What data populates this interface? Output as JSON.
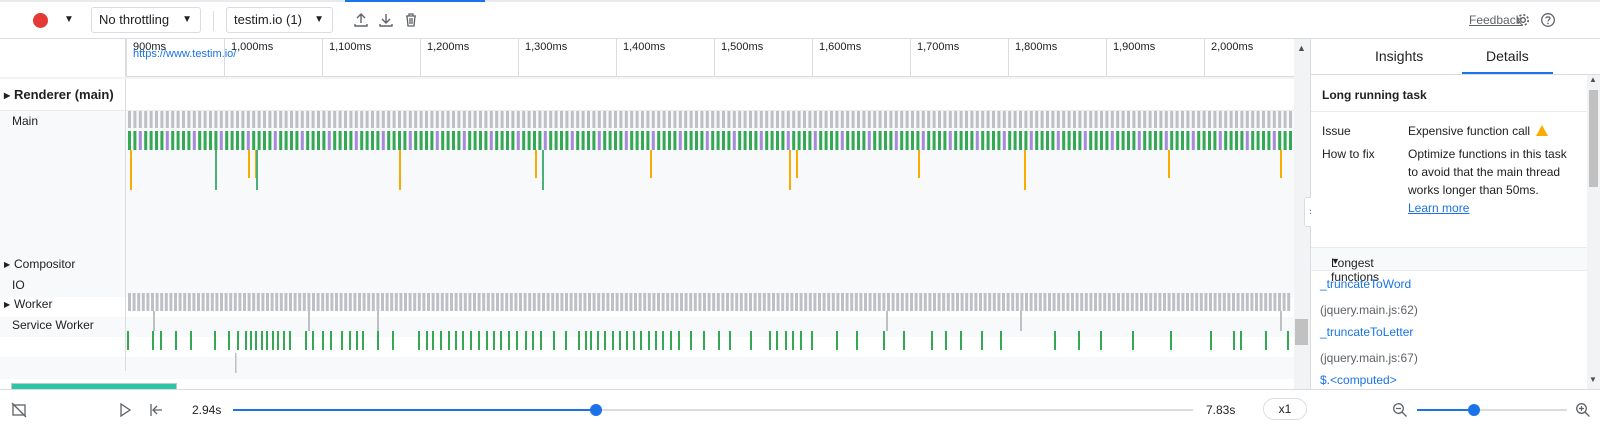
{
  "toolbar": {
    "throttling_value": "No throttling",
    "target_value": "testim.io (1)",
    "feedback_label": "Feedback"
  },
  "ruler": {
    "ticks": [
      "900ms",
      "1,000ms",
      "1,100ms",
      "1,200ms",
      "1,300ms",
      "1,400ms",
      "1,500ms",
      "1,600ms",
      "1,700ms",
      "1,800ms",
      "1,900ms",
      "2,000ms"
    ]
  },
  "tracks": {
    "renderer": "Renderer (main)",
    "renderer_url": "https://www.testim.io/",
    "main": "Main",
    "compositor": "Compositor",
    "io": "IO",
    "worker": "Worker",
    "service_worker": "Service Worker"
  },
  "colors": {
    "task_gray": "#bdc1c6",
    "scripting_green": "#34a853",
    "rendering_purple": "#a78bda",
    "long_task_yellow": "#f9ab00",
    "accent_blue": "#1a73e8"
  },
  "details": {
    "tabs": [
      "Insights",
      "Details"
    ],
    "active_tab": "Details",
    "title": "Long running task",
    "issue_key": "Issue",
    "issue_value": "Expensive function call",
    "fix_key": "How to fix",
    "fix_value": "Optimize functions in this task to avoid that the main thread works longer than 50ms.",
    "learn_more": "Learn more",
    "longest_functions_header": "Longest functions",
    "functions": [
      {
        "name": "_truncateToWord",
        "location": "(jquery.main.js:62)"
      },
      {
        "name": "_truncateToLetter",
        "location": "(jquery.main.js:67)"
      },
      {
        "name": "$.<computed>",
        "location": ""
      }
    ]
  },
  "playback": {
    "time_start": "2.94s",
    "time_end": "7.83s",
    "progress": 0.378,
    "speed": "x1",
    "zoom": 0.38
  }
}
